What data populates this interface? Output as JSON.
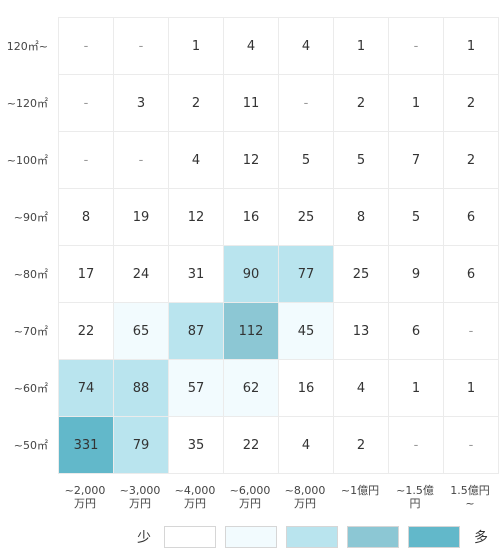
{
  "chart_data": {
    "type": "heatmap",
    "x_labels": [
      [
        "~2,000",
        "万円"
      ],
      [
        "~3,000",
        "万円"
      ],
      [
        "~4,000",
        "万円"
      ],
      [
        "~6,000",
        "万円"
      ],
      [
        "~8,000",
        "万円"
      ],
      [
        "~1億円"
      ],
      [
        "~1.5億",
        "円"
      ],
      [
        "1.5億円",
        "~"
      ]
    ],
    "y_labels": [
      "120㎡~",
      "~120㎡",
      "~100㎡",
      "~90㎡",
      "~80㎡",
      "~70㎡",
      "~60㎡",
      "~50㎡"
    ],
    "values": [
      [
        "-",
        "-",
        "1",
        "4",
        "4",
        "1",
        "-",
        "1"
      ],
      [
        "-",
        "3",
        "2",
        "11",
        "-",
        "2",
        "1",
        "2"
      ],
      [
        "-",
        "-",
        "4",
        "12",
        "5",
        "5",
        "7",
        "2"
      ],
      [
        "8",
        "19",
        "12",
        "16",
        "25",
        "8",
        "5",
        "6"
      ],
      [
        "17",
        "24",
        "31",
        "90",
        "77",
        "25",
        "9",
        "6"
      ],
      [
        "22",
        "65",
        "87",
        "112",
        "45",
        "13",
        "6",
        "-"
      ],
      [
        "74",
        "88",
        "57",
        "62",
        "16",
        "4",
        "1",
        "1"
      ],
      [
        "331",
        "79",
        "35",
        "22",
        "4",
        "2",
        "-",
        "-"
      ]
    ],
    "legend": {
      "low_label": "少",
      "high_label": "多",
      "colors": [
        "#ffffff",
        "#f2fbfe",
        "#b9e4ee",
        "#8cc7d4",
        "#62b8ca"
      ]
    },
    "scale_thresholds": [
      40,
      70,
      100,
      200
    ]
  }
}
